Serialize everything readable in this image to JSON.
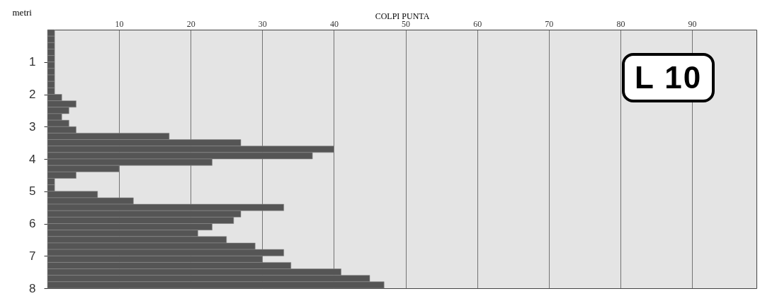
{
  "chart_data": {
    "type": "bar",
    "orientation": "horizontal",
    "xlabel": "COLPI PUNTA",
    "ylabel": "metri",
    "annotations": [
      "L 10"
    ],
    "x": [
      0.1,
      0.3,
      0.5,
      0.7,
      0.9,
      1.1,
      1.3,
      1.5,
      1.7,
      1.9,
      2.1,
      2.3,
      2.5,
      2.7,
      2.9,
      3.1,
      3.3,
      3.5,
      3.7,
      3.9,
      4.1,
      4.3,
      4.5,
      4.7,
      4.9,
      5.1,
      5.3,
      5.5,
      5.7,
      5.9,
      6.1,
      6.3,
      6.5,
      6.7,
      6.9,
      7.1,
      7.3,
      7.5,
      7.7,
      7.9
    ],
    "values": [
      1,
      1,
      1,
      1,
      1,
      1,
      1,
      1,
      1,
      1,
      2,
      4,
      3,
      2,
      3,
      4,
      17,
      27,
      40,
      37,
      23,
      10,
      4,
      1,
      1,
      7,
      12,
      33,
      27,
      26,
      23,
      21,
      25,
      29,
      33,
      30,
      34,
      41,
      45,
      47
    ],
    "color": "#555555",
    "xlim": [
      0,
      99
    ],
    "xticks": [
      10,
      20,
      30,
      40,
      50,
      60,
      70,
      80,
      90
    ],
    "ylim": [
      8,
      0
    ],
    "yticks": [
      1,
      2,
      3,
      4,
      5,
      6,
      7,
      8
    ],
    "grid": "x"
  }
}
